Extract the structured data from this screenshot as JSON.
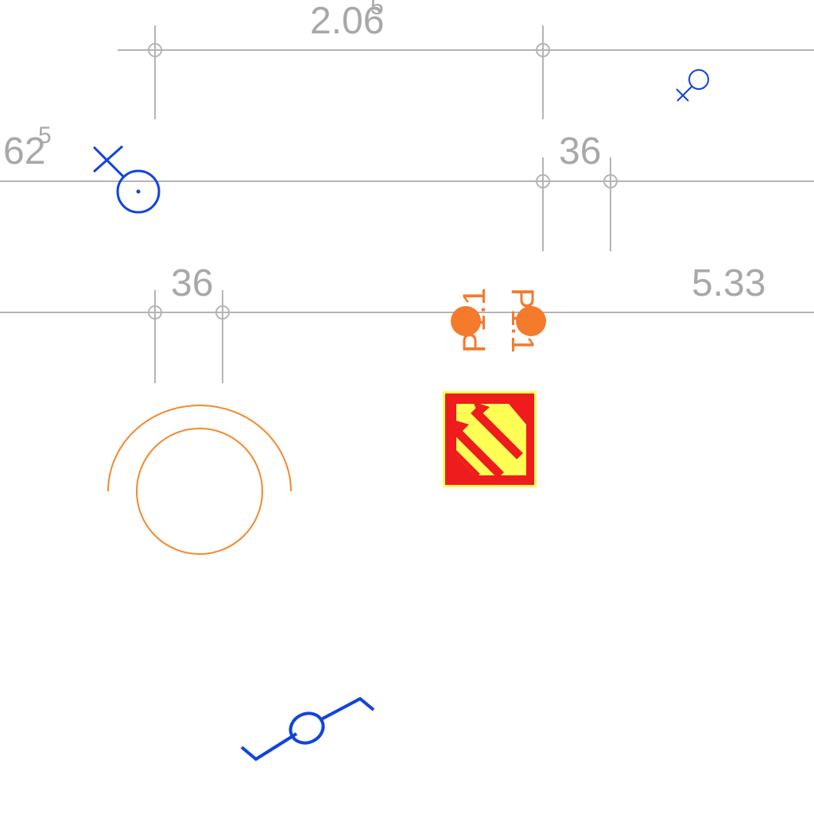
{
  "drawing": {
    "dimensions": {
      "top_value": "2.06",
      "top_superscript": "5",
      "left_value": "62",
      "left_superscript": "5",
      "mid_right_value": "36",
      "mid_left_value": "36",
      "far_right_value": "5.33"
    },
    "tags": {
      "left_tag": "P1.1",
      "right_tag": "P1.1"
    }
  },
  "colors": {
    "dimension": "#b4b4b4",
    "dimension_text": "#a8a8a8",
    "blue_symbol": "#1144dd",
    "orange_symbol": "#f47a2c",
    "arc_orange": "#f28a2e",
    "sign_red": "#ee1c1c",
    "sign_yellow": "#ffff55"
  },
  "icons": [
    "male-circle-symbol-icon",
    "small-male-symbol-icon",
    "orange-point-marker-icon",
    "fire-exit-sign-icon",
    "arc-circle-fixture-icon",
    "valve-symbol-icon"
  ]
}
